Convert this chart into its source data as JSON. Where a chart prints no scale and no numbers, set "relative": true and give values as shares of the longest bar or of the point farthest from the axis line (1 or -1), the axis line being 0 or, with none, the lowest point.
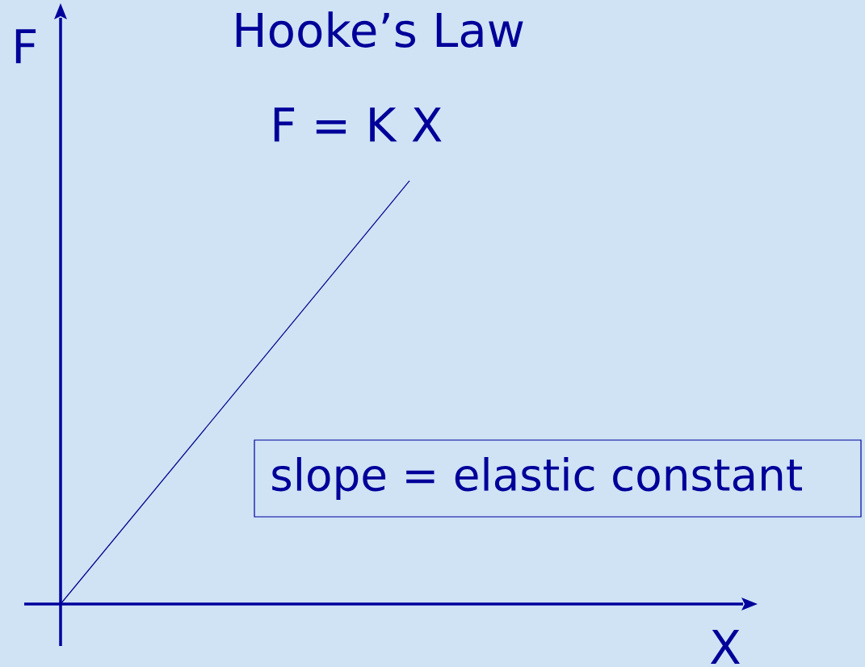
{
  "chart_data": {
    "type": "line",
    "title": "Hooke’s Law",
    "xlabel": "X",
    "ylabel": "F",
    "relative": true,
    "categories": [
      null,
      null
    ],
    "series": [
      {
        "color": "#00008b",
        "values": [
          0,
          1
        ]
      }
    ],
    "annotations": [
      "F = K X",
      "slope = elastic constant"
    ]
  }
}
